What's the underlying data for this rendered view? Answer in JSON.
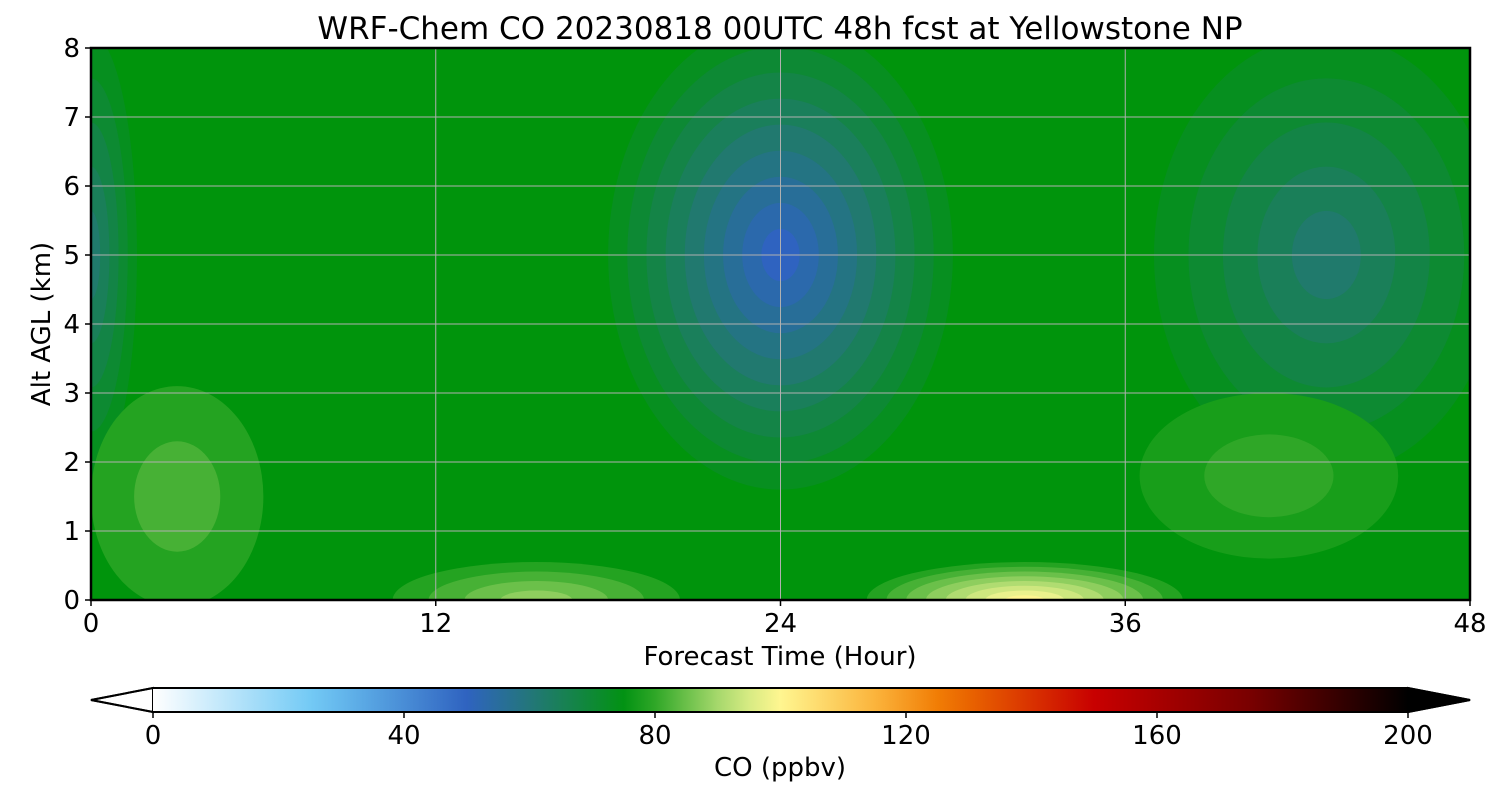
{
  "chart_data": {
    "type": "heatmap",
    "title": "WRF-Chem CO  20230818 00UTC 48h fcst at Yellowstone NP",
    "xlabel": "Forecast Time (Hour)",
    "ylabel": "Alt AGL (km)",
    "xlim": [
      0,
      48
    ],
    "ylim": [
      0,
      8
    ],
    "x_ticks": [
      "0",
      "12",
      "24",
      "36",
      "48"
    ],
    "y_ticks": [
      "0",
      "1",
      "2",
      "3",
      "4",
      "5",
      "6",
      "7",
      "8"
    ],
    "grid": true,
    "colorbar": {
      "label": "CO  (ppbv)",
      "range": [
        0,
        200
      ],
      "ticks": [
        "0",
        "40",
        "80",
        "120",
        "160",
        "200"
      ],
      "extend": "both",
      "stops": [
        {
          "value": 0,
          "color": "#ffffff"
        },
        {
          "value": 26,
          "color": "#6ec8f5"
        },
        {
          "value": 50,
          "color": "#2f63c0"
        },
        {
          "value": 62,
          "color": "#207a6c"
        },
        {
          "value": 76,
          "color": "#00940c"
        },
        {
          "value": 90,
          "color": "#a6d86c"
        },
        {
          "value": 99,
          "color": "#fffa96"
        },
        {
          "value": 115,
          "color": "#fbb43c"
        },
        {
          "value": 126,
          "color": "#f07800"
        },
        {
          "value": 150,
          "color": "#c80000"
        },
        {
          "value": 175,
          "color": "#780000"
        },
        {
          "value": 200,
          "color": "#000000"
        }
      ]
    },
    "features": [
      {
        "name": "upper-blue-minimum",
        "t": 24,
        "alt": 5.0,
        "value": 50
      },
      {
        "name": "right-upper-teal",
        "t": 43,
        "alt": 5.0,
        "value": 62
      },
      {
        "name": "left-upper-teal",
        "t": 0,
        "alt": 5.0,
        "value": 62
      },
      {
        "name": "surface-maximum",
        "t": 32.5,
        "alt": 0.1,
        "value": 100
      },
      {
        "name": "surface-secondary",
        "t": 15.5,
        "alt": 0.2,
        "value": 88
      },
      {
        "name": "left-lowlevel-plume",
        "t": 3.0,
        "alt": 1.5,
        "value": 82
      },
      {
        "name": "right-lowlevel-plume",
        "t": 41,
        "alt": 1.8,
        "value": 80
      }
    ]
  }
}
